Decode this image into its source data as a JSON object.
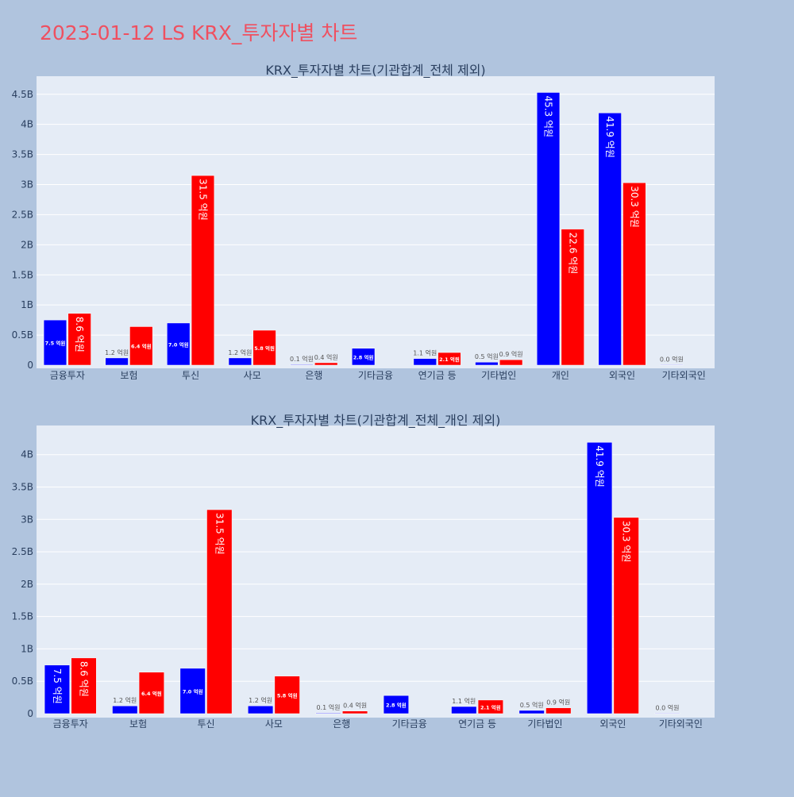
{
  "page_title": "2023-01-12 LS KRX_투자자별 차트",
  "colors": {
    "series_a": "#0000ff",
    "series_b": "#ff0000",
    "plot_bg": "#e5ecf6",
    "page_bg": "#b0c4de",
    "title": "#ef5060"
  },
  "chart_data": [
    {
      "type": "bar",
      "title": "KRX_투자자별 차트(기관합계_전체 제외)",
      "categories": [
        "금융투자",
        "보험",
        "투신",
        "사모",
        "은행",
        "기타금융",
        "연기금 등",
        "기타법인",
        "개인",
        "외국인",
        "기타외국인"
      ],
      "yticks": [
        "0",
        "0.5B",
        "1B",
        "1.5B",
        "2B",
        "2.5B",
        "3B",
        "3.5B",
        "4B",
        "4.5B"
      ],
      "ylim": [
        0,
        4.8
      ],
      "grid": true,
      "series": [
        {
          "values": [
            0.75,
            0.12,
            0.7,
            0.12,
            0.01,
            0.28,
            0.11,
            0.05,
            4.53,
            4.19,
            0.0
          ],
          "labels": [
            "7.5 억원",
            "1.2 억원",
            "7.0 억원",
            "1.2 억원",
            "0.1 억원",
            "2.8 억원",
            "1.1 억원",
            "0.5 억원",
            "45.3 억원",
            "41.9 억원",
            "0.0 억원"
          ]
        },
        {
          "values": [
            0.86,
            0.64,
            3.15,
            0.58,
            0.04,
            null,
            0.21,
            0.09,
            2.26,
            3.03,
            null
          ],
          "labels": [
            "8.6 억원",
            "6.4 억원",
            "31.5 억원",
            "5.8 억원",
            "0.4 억원",
            null,
            "2.1 억원",
            "0.9 억원",
            "22.6 억원",
            "30.3 억원",
            null
          ]
        }
      ]
    },
    {
      "type": "bar",
      "title": "KRX_투자자별 차트(기관합계_전체_개인 제외)",
      "categories": [
        "금융투자",
        "보험",
        "투신",
        "사모",
        "은행",
        "기타금융",
        "연기금 등",
        "기타법인",
        "외국인",
        "기타외국인"
      ],
      "yticks": [
        "0",
        "0.5B",
        "1B",
        "1.5B",
        "2B",
        "2.5B",
        "3B",
        "3.5B",
        "4B"
      ],
      "ylim": [
        0,
        4.45
      ],
      "grid": true,
      "series": [
        {
          "values": [
            0.75,
            0.12,
            0.7,
            0.12,
            0.01,
            0.28,
            0.11,
            0.05,
            4.19,
            0.0
          ],
          "labels": [
            "7.5 억원",
            "1.2 억원",
            "7.0 억원",
            "1.2 억원",
            "0.1 억원",
            "2.8 억원",
            "1.1 억원",
            "0.5 억원",
            "41.9 억원",
            "0.0 억원"
          ]
        },
        {
          "values": [
            0.86,
            0.64,
            3.15,
            0.58,
            0.04,
            null,
            0.21,
            0.09,
            3.03,
            null
          ],
          "labels": [
            "8.6 억원",
            "6.4 억원",
            "31.5 억원",
            "5.8 억원",
            "0.4 억원",
            null,
            "2.1 억원",
            "0.9 억원",
            "30.3 억원",
            null
          ]
        }
      ]
    }
  ]
}
